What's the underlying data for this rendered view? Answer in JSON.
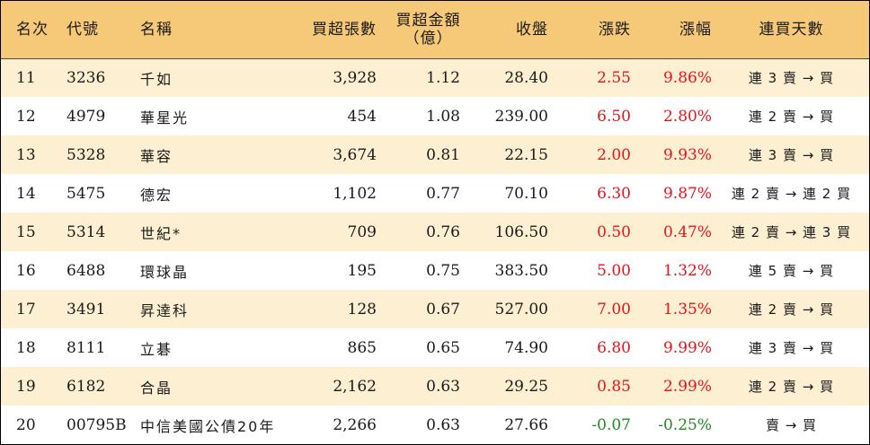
{
  "colors": {
    "header_bg": "#f5c978",
    "stripe_bg": "#fdf0d2",
    "up": "#e8121b",
    "down": "#1f8a1f"
  },
  "header": {
    "rank": "名次",
    "code": "代號",
    "name": "名稱",
    "volume": "買超張數",
    "amount_line1": "買超金額",
    "amount_line2": "（億）",
    "close": "收盤",
    "change": "漲跌",
    "change_pct": "漲幅",
    "days": "連買天數"
  },
  "rows": [
    {
      "rank": "11",
      "code": "3236",
      "name": "千如",
      "volume": "3,928",
      "amount": "1.12",
      "close": "28.40",
      "change": "2.55",
      "change_pct": "9.86%",
      "days": "連 3 賣 → 買",
      "dir": "up"
    },
    {
      "rank": "12",
      "code": "4979",
      "name": "華星光",
      "volume": "454",
      "amount": "1.08",
      "close": "239.00",
      "change": "6.50",
      "change_pct": "2.80%",
      "days": "連 2 賣 → 買",
      "dir": "up"
    },
    {
      "rank": "13",
      "code": "5328",
      "name": "華容",
      "volume": "3,674",
      "amount": "0.81",
      "close": "22.15",
      "change": "2.00",
      "change_pct": "9.93%",
      "days": "連 3 賣 → 買",
      "dir": "up"
    },
    {
      "rank": "14",
      "code": "5475",
      "name": "德宏",
      "volume": "1,102",
      "amount": "0.77",
      "close": "70.10",
      "change": "6.30",
      "change_pct": "9.87%",
      "days": "連 2 賣 → 連 2 買",
      "dir": "up"
    },
    {
      "rank": "15",
      "code": "5314",
      "name": "世紀*",
      "volume": "709",
      "amount": "0.76",
      "close": "106.50",
      "change": "0.50",
      "change_pct": "0.47%",
      "days": "連 2 賣 → 連 3 買",
      "dir": "up"
    },
    {
      "rank": "16",
      "code": "6488",
      "name": "環球晶",
      "volume": "195",
      "amount": "0.75",
      "close": "383.50",
      "change": "5.00",
      "change_pct": "1.32%",
      "days": "連 5 賣 → 買",
      "dir": "up"
    },
    {
      "rank": "17",
      "code": "3491",
      "name": "昇達科",
      "volume": "128",
      "amount": "0.67",
      "close": "527.00",
      "change": "7.00",
      "change_pct": "1.35%",
      "days": "連 2 賣 → 買",
      "dir": "up"
    },
    {
      "rank": "18",
      "code": "8111",
      "name": "立碁",
      "volume": "865",
      "amount": "0.65",
      "close": "74.90",
      "change": "6.80",
      "change_pct": "9.99%",
      "days": "連 3 賣 → 買",
      "dir": "up"
    },
    {
      "rank": "19",
      "code": "6182",
      "name": "合晶",
      "volume": "2,162",
      "amount": "0.63",
      "close": "29.25",
      "change": "0.85",
      "change_pct": "2.99%",
      "days": "連 2 賣 → 買",
      "dir": "up"
    },
    {
      "rank": "20",
      "code": "00795B",
      "name": "中信美國公債20年",
      "volume": "2,266",
      "amount": "0.63",
      "close": "27.66",
      "change": "-0.07",
      "change_pct": "-0.25%",
      "days": "賣 → 買",
      "dir": "down"
    }
  ]
}
